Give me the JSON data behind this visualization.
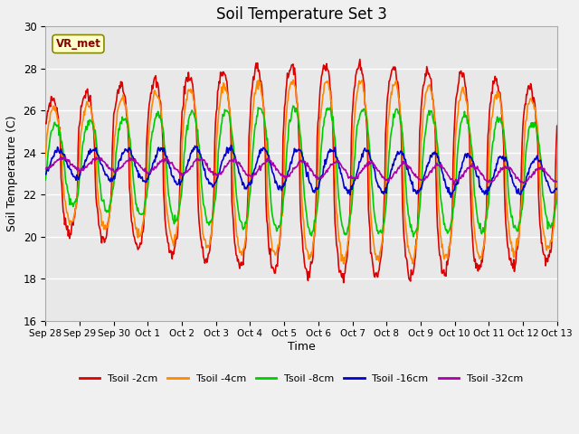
{
  "title": "Soil Temperature Set 3",
  "xlabel": "Time",
  "ylabel": "Soil Temperature (C)",
  "ylim": [
    16,
    30
  ],
  "yticks": [
    16,
    18,
    20,
    22,
    24,
    26,
    28,
    30
  ],
  "fig_bg_color": "#f0f0f0",
  "plot_bg_color": "#e8e8e8",
  "grid_color": "#ffffff",
  "annotation_text": "VR_met",
  "annotation_box_color": "#ffffcc",
  "annotation_border_color": "#888800",
  "series": [
    {
      "label": "Tsoil -2cm",
      "color": "#dd0000"
    },
    {
      "label": "Tsoil -4cm",
      "color": "#ff8800"
    },
    {
      "label": "Tsoil -8cm",
      "color": "#00cc00"
    },
    {
      "label": "Tsoil -16cm",
      "color": "#0000cc"
    },
    {
      "label": "Tsoil -32cm",
      "color": "#aa00aa"
    }
  ],
  "xtick_labels": [
    "Sep 28",
    "Sep 29",
    "Sep 30",
    "Oct 1",
    "Oct 2",
    "Oct 3",
    "Oct 4",
    "Oct 5",
    "Oct 6",
    "Oct 7",
    "Oct 8",
    "Oct 9",
    "Oct 10",
    "Oct 11",
    "Oct 12",
    "Oct 13"
  ],
  "n_days": 16,
  "pts_per_day": 48,
  "linewidth": 1.2
}
